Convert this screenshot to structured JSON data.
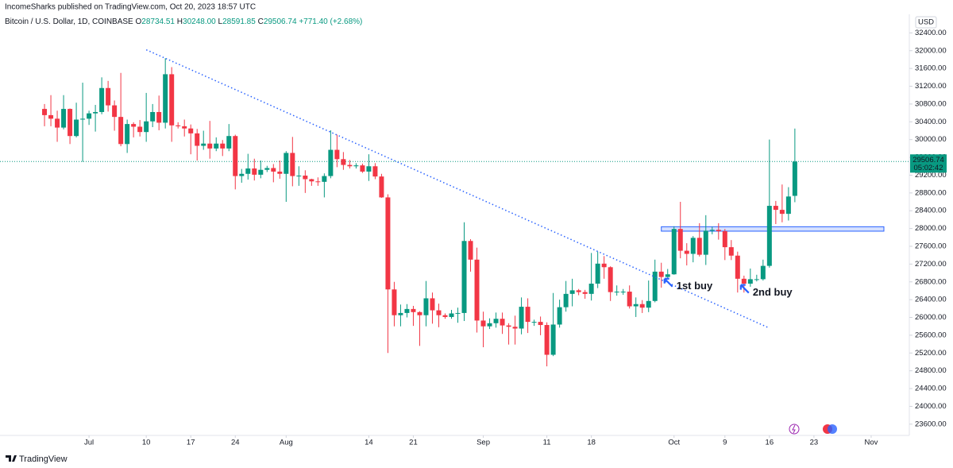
{
  "header": "IncomeSharks published on TradingView.com, Oct 20, 2023 18:57 UTC",
  "footer": "TradingView",
  "chart_data": {
    "type": "candlestick",
    "symbol": "Bitcoin / U.S. Dollar, 1D, COINBASE",
    "legend": {
      "o": "O",
      "open": "28734.51",
      "h": "H",
      "high": "30248.00",
      "l": "L",
      "low": "28591.85",
      "c": "C",
      "close": "29506.74",
      "change": "+771.40 (+2.68%)"
    },
    "currency": "USD",
    "price_tag": {
      "value": 29506.74,
      "label": "29506.74",
      "countdown": "05:02:42"
    },
    "up_color": "#089981",
    "down_color": "#f23645",
    "x": [
      "2023-06-24",
      "2023-06-25",
      "2023-06-26",
      "2023-06-27",
      "2023-06-28",
      "2023-06-29",
      "2023-06-30",
      "2023-07-01",
      "2023-07-02",
      "2023-07-03",
      "2023-07-04",
      "2023-07-05",
      "2023-07-06",
      "2023-07-07",
      "2023-07-08",
      "2023-07-09",
      "2023-07-10",
      "2023-07-11",
      "2023-07-12",
      "2023-07-13",
      "2023-07-14",
      "2023-07-15",
      "2023-07-16",
      "2023-07-17",
      "2023-07-18",
      "2023-07-19",
      "2023-07-20",
      "2023-07-21",
      "2023-07-22",
      "2023-07-23",
      "2023-07-24",
      "2023-07-25",
      "2023-07-26",
      "2023-07-27",
      "2023-07-28",
      "2023-07-29",
      "2023-07-30",
      "2023-07-31",
      "2023-08-01",
      "2023-08-02",
      "2023-08-03",
      "2023-08-04",
      "2023-08-05",
      "2023-08-06",
      "2023-08-07",
      "2023-08-08",
      "2023-08-09",
      "2023-08-10",
      "2023-08-11",
      "2023-08-12",
      "2023-08-13",
      "2023-08-14",
      "2023-08-15",
      "2023-08-16",
      "2023-08-17",
      "2023-08-18",
      "2023-08-19",
      "2023-08-20",
      "2023-08-21",
      "2023-08-22",
      "2023-08-23",
      "2023-08-24",
      "2023-08-25",
      "2023-08-26",
      "2023-08-27",
      "2023-08-28",
      "2023-08-29",
      "2023-08-30",
      "2023-08-31",
      "2023-09-01",
      "2023-09-02",
      "2023-09-03",
      "2023-09-04",
      "2023-09-05",
      "2023-09-06",
      "2023-09-07",
      "2023-09-08",
      "2023-09-09",
      "2023-09-10",
      "2023-09-11",
      "2023-09-12",
      "2023-09-13",
      "2023-09-14",
      "2023-09-15",
      "2023-09-16",
      "2023-09-17",
      "2023-09-18",
      "2023-09-19",
      "2023-09-20",
      "2023-09-21",
      "2023-09-22",
      "2023-09-23",
      "2023-09-24",
      "2023-09-25",
      "2023-09-26",
      "2023-09-27",
      "2023-09-28",
      "2023-09-29",
      "2023-09-30",
      "2023-10-01",
      "2023-10-02",
      "2023-10-03",
      "2023-10-04",
      "2023-10-05",
      "2023-10-06",
      "2023-10-07",
      "2023-10-08",
      "2023-10-09",
      "2023-10-10",
      "2023-10-11",
      "2023-10-12",
      "2023-10-13",
      "2023-10-14",
      "2023-10-15",
      "2023-10-16",
      "2023-10-17",
      "2023-10-18",
      "2023-10-19",
      "2023-10-20"
    ],
    "open": [
      30690,
      30550,
      30470,
      30270,
      30690,
      30080,
      30450,
      30470,
      30590,
      30620,
      31160,
      30770,
      30510,
      29900,
      30350,
      30290,
      30170,
      30410,
      30620,
      30380,
      31470,
      30320,
      30300,
      30250,
      30140,
      29860,
      29910,
      29800,
      29910,
      29800,
      30080,
      29180,
      29230,
      29350,
      29210,
      29320,
      29360,
      29280,
      29230,
      29700,
      29180,
      29190,
      29110,
      29060,
      29050,
      29180,
      29770,
      29560,
      29430,
      29400,
      29420,
      29280,
      29400,
      29170,
      28700,
      26630,
      26050,
      26100,
      26190,
      26120,
      26050,
      26430,
      26160,
      26050,
      26010,
      26090,
      26100,
      27720,
      27300,
      25930,
      25800,
      25870,
      25970,
      25820,
      25790,
      25750,
      26240,
      25900,
      25900,
      25830,
      25160,
      25840,
      26230,
      26530,
      26610,
      26570,
      26530,
      26760,
      27210,
      27130,
      26570,
      26580,
      26580,
      26250,
      26300,
      26220,
      26370,
      27030,
      26910,
      26970,
      27990,
      27500,
      27430,
      27790,
      27410,
      27950,
      27970,
      27940,
      27580,
      27390,
      26870,
      26760,
      26860,
      26860,
      27160,
      28510,
      28420,
      28330,
      28734.51
    ],
    "high": [
      30800,
      31000,
      30650,
      31000,
      30700,
      30830,
      31280,
      30650,
      30780,
      31400,
      31320,
      30880,
      31500,
      30450,
      30390,
      30440,
      31050,
      30800,
      30990,
      31830,
      31630,
      30390,
      30450,
      30340,
      30240,
      30200,
      30420,
      30050,
      29990,
      30350,
      30110,
      29340,
      29680,
      29570,
      29530,
      29410,
      29450,
      29530,
      29740,
      30060,
      29400,
      29310,
      29120,
      29150,
      29240,
      30210,
      30110,
      29720,
      29540,
      29470,
      29460,
      29670,
      29470,
      29230,
      28770,
      26800,
      26290,
      26300,
      26260,
      26140,
      26820,
      26560,
      26310,
      26090,
      26170,
      26220,
      28140,
      27760,
      27570,
      26130,
      25980,
      26110,
      26110,
      25870,
      26040,
      26450,
      26430,
      25950,
      26020,
      25890,
      26550,
      26400,
      26820,
      26870,
      26640,
      26620,
      27450,
      27480,
      27380,
      27150,
      26720,
      26640,
      26720,
      26450,
      26390,
      26830,
      27300,
      27230,
      27090,
      28050,
      28600,
      27670,
      27830,
      28120,
      28300,
      28040,
      28120,
      27990,
      27740,
      27480,
      26940,
      27100,
      26960,
      27300,
      30000,
      28620,
      28990,
      28930,
      30248
    ],
    "low": [
      30300,
      30300,
      29950,
      30230,
      29900,
      30050,
      29500,
      30330,
      30180,
      30570,
      30630,
      30200,
      29850,
      29700,
      30050,
      30070,
      29950,
      30280,
      30210,
      30250,
      29950,
      30250,
      30070,
      29670,
      29530,
      29770,
      29570,
      29740,
      29630,
      29740,
      28880,
      29030,
      29100,
      29080,
      29130,
      29270,
      29040,
      29120,
      28600,
      28950,
      28960,
      28800,
      28960,
      28960,
      28700,
      29130,
      29380,
      29320,
      29350,
      29350,
      29250,
      29070,
      29110,
      28690,
      25200,
      25800,
      25800,
      26000,
      25810,
      25360,
      25800,
      25860,
      25780,
      25970,
      25970,
      25880,
      25920,
      27030,
      25660,
      25330,
      25740,
      25770,
      25630,
      25390,
      25390,
      25620,
      25650,
      25810,
      25600,
      24900,
      25130,
      25770,
      26130,
      26250,
      26500,
      26420,
      26380,
      26660,
      26870,
      26370,
      26490,
      26510,
      26200,
      26010,
      26100,
      26120,
      26340,
      26670,
      26890,
      26960,
      27330,
      27170,
      27240,
      27370,
      27180,
      27870,
      27750,
      27290,
      27290,
      26560,
      26560,
      26690,
      26810,
      26830,
      27120,
      28100,
      28140,
      28180,
      28591.85
    ],
    "close": [
      30550,
      30470,
      30270,
      30690,
      30080,
      30450,
      30470,
      30590,
      30620,
      31160,
      30770,
      30510,
      29900,
      30350,
      30290,
      30170,
      30410,
      30620,
      30380,
      31470,
      30320,
      30300,
      30250,
      30140,
      29860,
      29910,
      29800,
      29910,
      29800,
      30080,
      29180,
      29230,
      29350,
      29210,
      29320,
      29360,
      29280,
      29230,
      29700,
      29180,
      29190,
      29110,
      29060,
      29050,
      29180,
      29770,
      29560,
      29430,
      29400,
      29420,
      29280,
      29400,
      29170,
      28700,
      26630,
      26050,
      26100,
      26190,
      26120,
      26050,
      26430,
      26160,
      26050,
      26010,
      26090,
      26100,
      27720,
      27300,
      25930,
      25800,
      25870,
      25970,
      25820,
      25790,
      25750,
      26240,
      25900,
      25900,
      25830,
      25160,
      25840,
      26230,
      26530,
      26610,
      26570,
      26530,
      26760,
      27210,
      27130,
      26570,
      26580,
      26580,
      26250,
      26300,
      26220,
      26370,
      27030,
      26910,
      26970,
      27990,
      27500,
      27430,
      27790,
      27410,
      27950,
      27970,
      27940,
      27580,
      27390,
      26870,
      26760,
      26860,
      26860,
      27160,
      28510,
      28420,
      28330,
      28720,
      29506.74
    ],
    "xlim": [
      "2023-06-17",
      "2023-11-07"
    ],
    "xticks": [
      {
        "value": "2023-07-01",
        "label": "Jul"
      },
      {
        "value": "2023-07-10",
        "label": "10"
      },
      {
        "value": "2023-07-17",
        "label": "17"
      },
      {
        "value": "2023-07-24",
        "label": "24"
      },
      {
        "value": "2023-08-01",
        "label": "Aug"
      },
      {
        "value": "2023-08-14",
        "label": "14"
      },
      {
        "value": "2023-08-21",
        "label": "21"
      },
      {
        "value": "2023-09-01",
        "label": "Sep"
      },
      {
        "value": "2023-09-11",
        "label": "11"
      },
      {
        "value": "2023-09-18",
        "label": "18"
      },
      {
        "value": "2023-10-01",
        "label": "Oct"
      },
      {
        "value": "2023-10-09",
        "label": "9"
      },
      {
        "value": "2023-10-16",
        "label": "16"
      },
      {
        "value": "2023-10-23",
        "label": "23"
      },
      {
        "value": "2023-11-01",
        "label": "Nov"
      }
    ],
    "ylim": [
      23400,
      32800
    ],
    "yticks": [
      {
        "value": 23600,
        "label": "23600.00"
      },
      {
        "value": 24000,
        "label": "24000.00"
      },
      {
        "value": 24400,
        "label": "24400.00"
      },
      {
        "value": 24800,
        "label": "24800.00"
      },
      {
        "value": 25200,
        "label": "25200.00"
      },
      {
        "value": 25600,
        "label": "25600.00"
      },
      {
        "value": 26000,
        "label": "26000.00"
      },
      {
        "value": 26400,
        "label": "26400.00"
      },
      {
        "value": 26800,
        "label": "26800.00"
      },
      {
        "value": 27200,
        "label": "27200.00"
      },
      {
        "value": 27600,
        "label": "27600.00"
      },
      {
        "value": 28000,
        "label": "28000.00"
      },
      {
        "value": 28400,
        "label": "28400.00"
      },
      {
        "value": 28800,
        "label": "28800.00"
      },
      {
        "value": 29200,
        "label": "29200.00"
      },
      {
        "value": 29600,
        "label": "29600.00"
      },
      {
        "value": 30000,
        "label": "30000.00"
      },
      {
        "value": 30400,
        "label": "30400.00"
      },
      {
        "value": 30800,
        "label": "30800.00"
      },
      {
        "value": 31200,
        "label": "31200.00"
      },
      {
        "value": 31600,
        "label": "31600.00"
      },
      {
        "value": 32000,
        "label": "32000.00"
      },
      {
        "value": 32400,
        "label": "32400.00"
      }
    ],
    "trendline": {
      "x": [
        "2023-07-10",
        "2023-10-16"
      ],
      "y": [
        32020,
        25760
      ],
      "color": "#2962ff"
    },
    "zone": {
      "x": [
        "2023-09-29",
        "2023-11-03"
      ],
      "y": [
        27940,
        28040
      ],
      "color": "#2962ff"
    },
    "annotations": [
      {
        "text": "1st buy",
        "x": "2023-09-30",
        "y": 26800
      },
      {
        "text": "2nd buy",
        "x": "2023-10-12",
        "y": 26660
      }
    ]
  }
}
